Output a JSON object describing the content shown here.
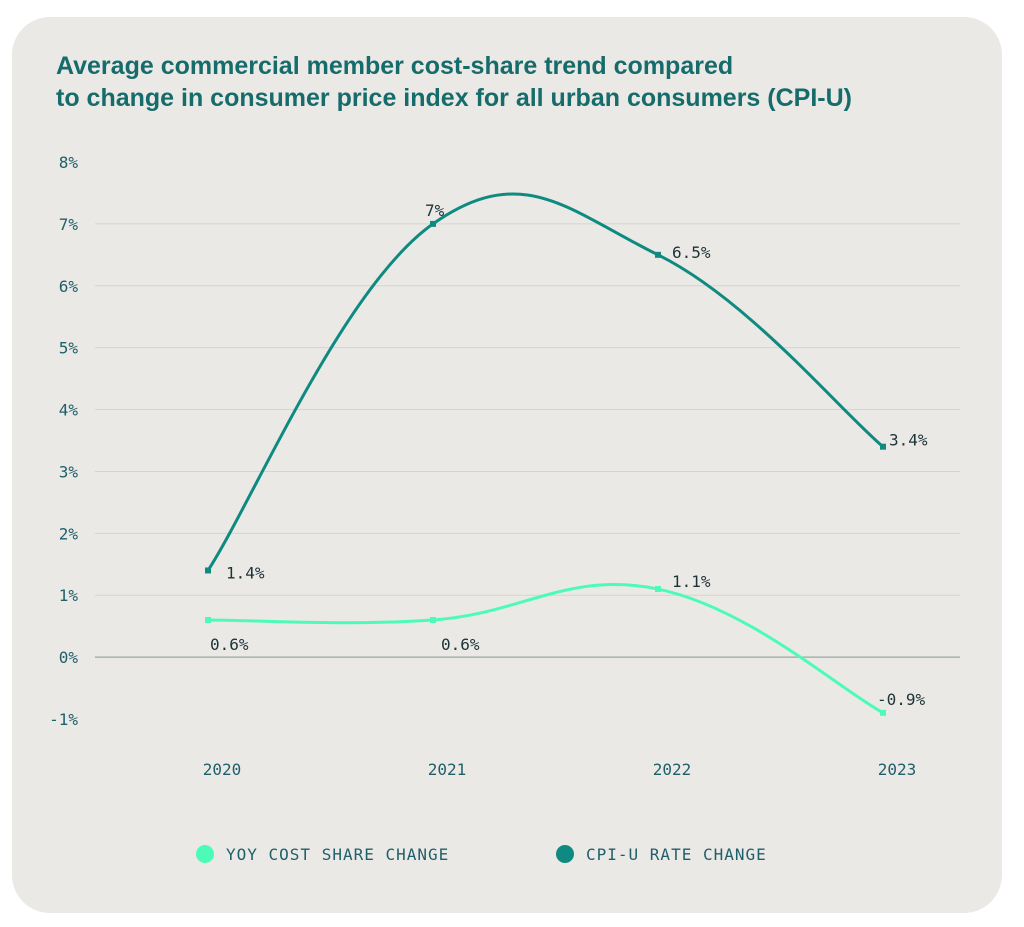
{
  "chart_data": {
    "type": "line",
    "title_lines": [
      "Average commercial member cost-share trend compared",
      "to change in consumer price index for all urban consumers (CPI-U)"
    ],
    "categories": [
      "2020",
      "2021",
      "2022",
      "2023"
    ],
    "ylim": [
      -1,
      8
    ],
    "yticks": [
      -1,
      0,
      1,
      2,
      3,
      4,
      5,
      6,
      7,
      8
    ],
    "ytick_labels": [
      "-1%",
      "0%",
      "1%",
      "2%",
      "3%",
      "4%",
      "5%",
      "6%",
      "7%",
      "8%"
    ],
    "grid": true,
    "legend_position": "bottom",
    "series": [
      {
        "name": "YOY COST SHARE CHANGE",
        "color": "#4dfbb9",
        "values": [
          0.6,
          0.6,
          1.1,
          -0.9
        ],
        "labels": [
          "0.6%",
          "0.6%",
          "1.1%",
          "-0.9%"
        ]
      },
      {
        "name": "CPI-U RATE CHANGE",
        "color": "#0e8a80",
        "values": [
          1.4,
          7,
          6.5,
          3.4
        ],
        "labels": [
          "1.4%",
          "7%",
          "6.5%",
          "3.4%"
        ]
      }
    ]
  }
}
